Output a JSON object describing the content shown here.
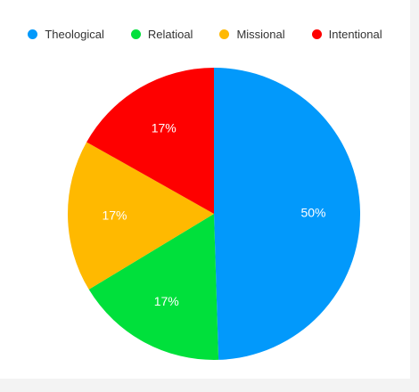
{
  "chart_data": {
    "type": "pie",
    "categories": [
      "Theological",
      "Relatioal",
      "Missional",
      "Intentional"
    ],
    "values": [
      50,
      17,
      17,
      17
    ],
    "value_labels": [
      "50%",
      "17%",
      "17%",
      "17%"
    ],
    "colors": [
      "#0299fb",
      "#00e03b",
      "#ffb900",
      "#fe0000"
    ],
    "legend": {
      "placement": "top-center",
      "entries": [
        "Theological",
        "Relatioal",
        "Missional",
        "Intentional"
      ]
    },
    "title": ""
  }
}
